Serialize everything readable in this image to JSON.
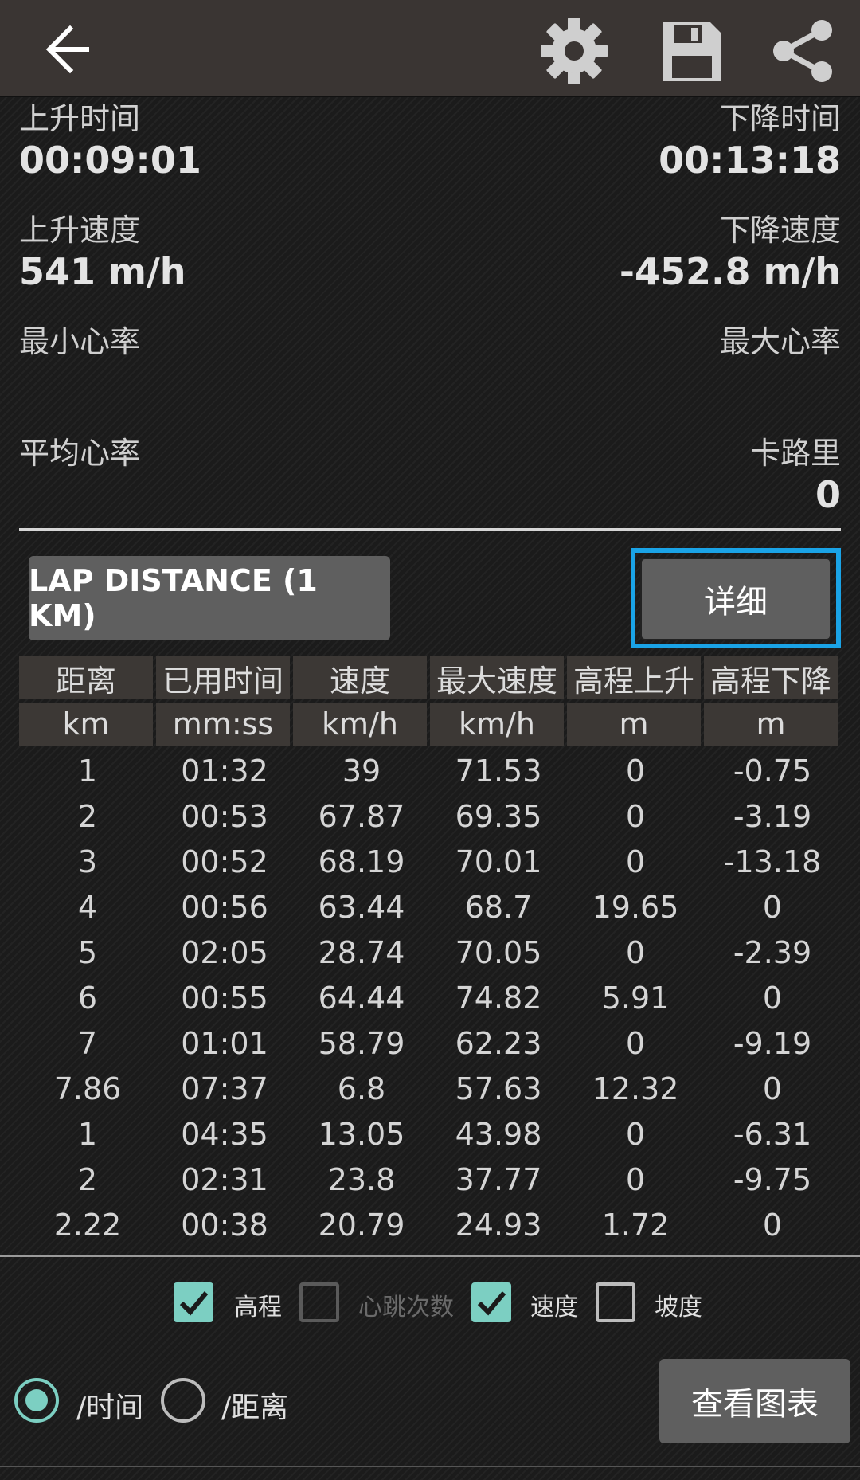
{
  "toolbar": {
    "back_icon": "back-arrow-icon",
    "settings_icon": "gear-icon",
    "save_icon": "floppy-disk-icon",
    "share_icon": "share-icon"
  },
  "stats": {
    "ascent_time_label": "上升时间",
    "ascent_time_value": "00:09:01",
    "descent_time_label": "下降时间",
    "descent_time_value": "00:13:18",
    "ascent_speed_label": "上升速度",
    "ascent_speed_value": "541 m/h",
    "descent_speed_label": "下降速度",
    "descent_speed_value": "-452.8 m/h",
    "min_hr_label": "最小心率",
    "max_hr_label": "最大心率",
    "avg_hr_label": "平均心率",
    "calories_label": "卡路里",
    "calories_value": "0"
  },
  "buttons": {
    "lap_distance": "LAP DISTANCE (1  KM)",
    "detail": "详细",
    "view_chart": "查看图表"
  },
  "table": {
    "headers": [
      "距离",
      "已用时间",
      "速度",
      "最大速度",
      "高程上升",
      "高程下降"
    ],
    "units": [
      "km",
      "mm:ss",
      "km/h",
      "km/h",
      "m",
      "m"
    ],
    "rows": [
      [
        "1",
        "01:32",
        "39",
        "71.53",
        "0",
        "-0.75"
      ],
      [
        "2",
        "00:53",
        "67.87",
        "69.35",
        "0",
        "-3.19"
      ],
      [
        "3",
        "00:52",
        "68.19",
        "70.01",
        "0",
        "-13.18"
      ],
      [
        "4",
        "00:56",
        "63.44",
        "68.7",
        "19.65",
        "0"
      ],
      [
        "5",
        "02:05",
        "28.74",
        "70.05",
        "0",
        "-2.39"
      ],
      [
        "6",
        "00:55",
        "64.44",
        "74.82",
        "5.91",
        "0"
      ],
      [
        "7",
        "01:01",
        "58.79",
        "62.23",
        "0",
        "-9.19"
      ],
      [
        "7.86",
        "07:37",
        "6.8",
        "57.63",
        "12.32",
        "0"
      ],
      [
        "1",
        "04:35",
        "13.05",
        "43.98",
        "0",
        "-6.31"
      ],
      [
        "2",
        "02:31",
        "23.8",
        "37.77",
        "0",
        "-9.75"
      ],
      [
        "2.22",
        "00:38",
        "20.79",
        "24.93",
        "1.72",
        "0"
      ]
    ]
  },
  "checkboxes": [
    {
      "label": "高程",
      "checked": true,
      "enabled": true
    },
    {
      "label": "心跳次数",
      "checked": false,
      "enabled": false
    },
    {
      "label": "速度",
      "checked": true,
      "enabled": true
    },
    {
      "label": "坡度",
      "checked": false,
      "enabled": true
    }
  ],
  "radios": [
    {
      "label": "/时间",
      "selected": true
    },
    {
      "label": "/距离",
      "selected": false
    }
  ],
  "colors": {
    "accent": "#7ccfc2",
    "focus_border": "#1aa3e6",
    "toolbar_bg": "#3a3533"
  }
}
